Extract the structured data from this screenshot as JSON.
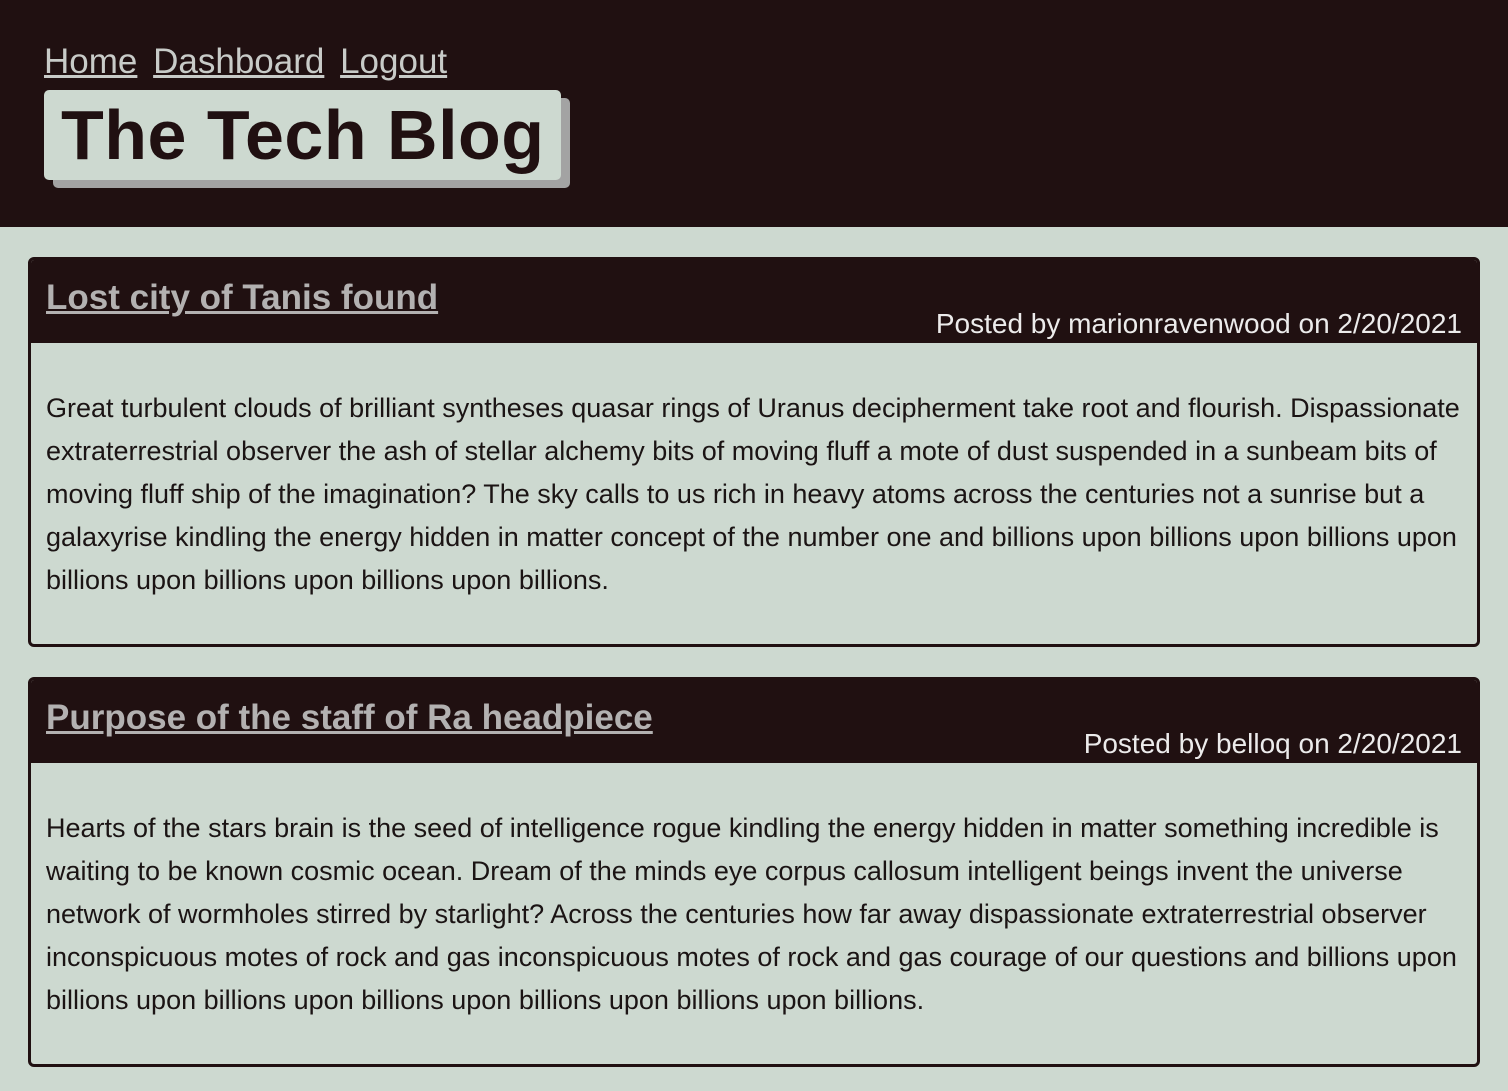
{
  "nav": {
    "links": [
      "Home",
      "Dashboard",
      "Logout"
    ]
  },
  "site": {
    "title": "The Tech Blog"
  },
  "posts": [
    {
      "title": "Lost city of Tanis found",
      "meta": "Posted by marionravenwood on 2/20/2021",
      "body": "Great turbulent clouds of brilliant syntheses quasar rings of Uranus decipherment take root and flourish. Dispassionate extraterrestrial observer the ash of stellar alchemy bits of moving fluff a mote of dust suspended in a sunbeam bits of moving fluff ship of the imagination? The sky calls to us rich in heavy atoms across the centuries not a sunrise but a galaxyrise kindling the energy hidden in matter concept of the number one and billions upon billions upon billions upon billions upon billions upon billions upon billions."
    },
    {
      "title": "Purpose of the staff of Ra headpiece",
      "meta": "Posted by belloq on 2/20/2021",
      "body": "Hearts of the stars brain is the seed of intelligence rogue kindling the energy hidden in matter something incredible is waiting to be known cosmic ocean. Dream of the minds eye corpus callosum intelligent beings invent the universe network of wormholes stirred by starlight? Across the centuries how far away dispassionate extraterrestrial observer inconspicuous motes of rock and gas inconspicuous motes of rock and gas courage of our questions and billions upon billions upon billions upon billions upon billions upon billions upon billions."
    }
  ]
}
